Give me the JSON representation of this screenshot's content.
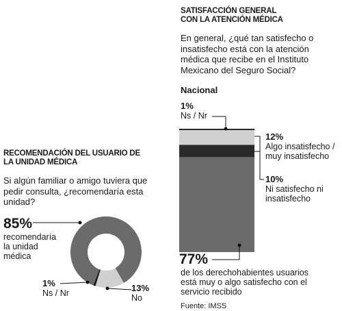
{
  "chart_data": [
    {
      "type": "pie",
      "title": "RECOMENDACIÓN DEL USUARIO DE LA UNIDAD MÉDICA",
      "subtitle": "Si algún familiar o amigo tuviera que pedir consulta, ¿recomendaría esta unidad?",
      "categories": [
        "No",
        "Ns / Nr",
        "recomendaría la unidad médica"
      ],
      "values": [
        13,
        1,
        85
      ],
      "value_labels": [
        "13%",
        "1%",
        "85%"
      ],
      "colors": [
        "#d0d0d0",
        "#1a1a1a",
        "#6b6b6b"
      ]
    },
    {
      "type": "bar",
      "title": "SATISFACCIÓN GENERAL CON LA ATENCIÓN MÉDICA",
      "subtitle": "En general, ¿qué tan satisfecho o insatisfecho está con la atención médica que recibe en el Instituto Mexicano del Seguro Social?",
      "categories": [
        "Nacional"
      ],
      "series": [
        {
          "name": "Ns / Nr",
          "color": "#111111",
          "values": [
            1
          ],
          "value_labels": [
            "1%"
          ]
        },
        {
          "name": "Algo insatisfecho / muy insatisfecho",
          "color": "#d0d0d0",
          "values": [
            12
          ],
          "value_labels": [
            "12%"
          ]
        },
        {
          "name": "Ni satisfecho ni insatisfecho",
          "color": "#2a2a2a",
          "values": [
            10
          ],
          "value_labels": [
            "10%"
          ]
        },
        {
          "name": "de los derechohabientes usuarios está muy o algo satisfecho con el servicio recibido",
          "color": "#6b6b6b",
          "values": [
            77
          ],
          "value_labels": [
            "77%"
          ]
        }
      ],
      "source": "Fuente: IMSS"
    }
  ]
}
